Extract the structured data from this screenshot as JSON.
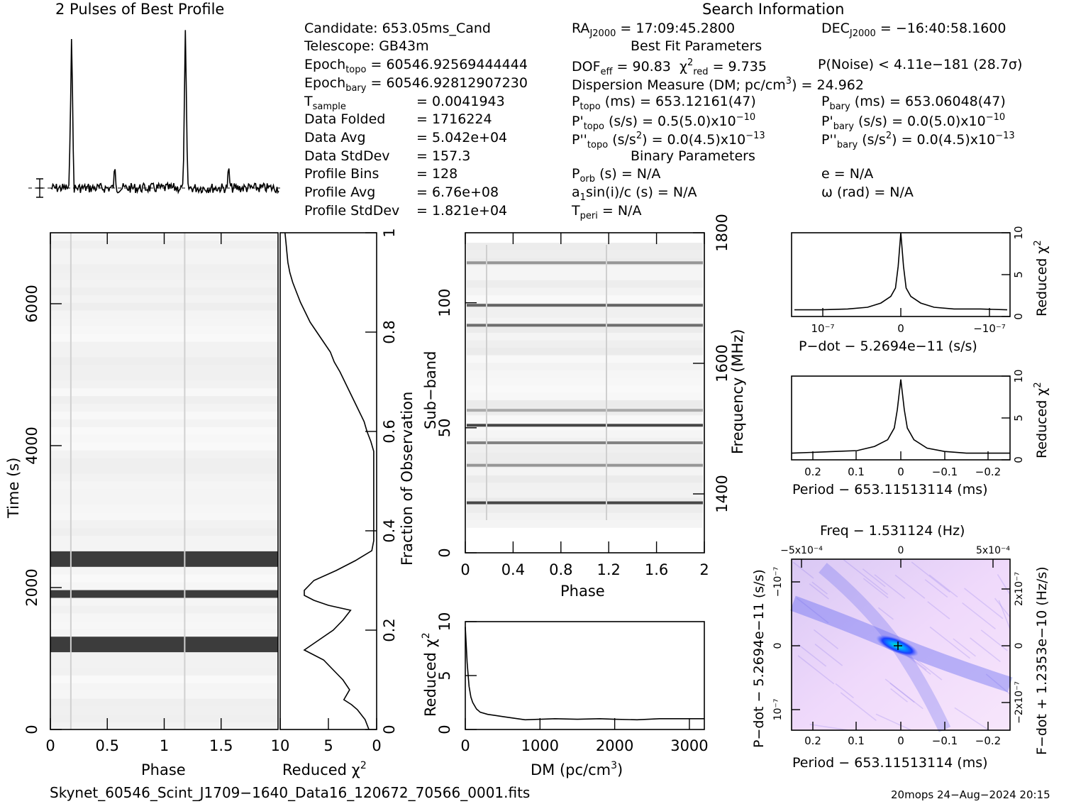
{
  "titles": {
    "profile": "2 Pulses of Best Profile",
    "search": "Search Information",
    "best_fit": "Best Fit Parameters",
    "binary": "Binary Parameters",
    "filename": "Skynet_60546_Scint_J1709−1640_Data16_120672_70566_0001.fits",
    "footer": "20mops 24−Aug−2024 20:15"
  },
  "info_left": {
    "candidate": "Candidate:  653.05ms_Cand",
    "telescope": "Telescope:  GB43m",
    "epoch_topo": "= 60546.92569444444",
    "epoch_bary": "= 60546.92812907230",
    "t_sample": "=   0.0041943",
    "data_folded_label": "Data Folded",
    "data_folded": "=   1716224",
    "data_avg_label": "Data Avg",
    "data_avg": "=   5.042e+04",
    "data_std_label": "Data StdDev",
    "data_std": "=   157.3",
    "profile_bins_label": "Profile Bins",
    "profile_bins": "=   128",
    "profile_avg_label": "Profile Avg",
    "profile_avg": "=   6.76e+08",
    "profile_std_label": "Profile StdDev",
    "profile_std": "=   1.821e+04"
  },
  "info_right": {
    "ra": "= 17:09:45.2800",
    "dec": "= −16:40:58.1600",
    "dof": "= 90.83",
    "chi2": "= 9.735",
    "pnoise": "P(Noise) < 4.11e−181  (28.7σ)",
    "dm": "Dispersion Measure (DM; pc/cm",
    "dm_val": ") = 24.962",
    "ptopo": "(ms) =  653.12161(47)",
    "pbary": "(ms) =  653.06048(47)",
    "pdtopo": "(s/s) =  0.5(5.0)x10",
    "pdtopo_exp": "−10",
    "pdbary": "(s/s) = 0.0(5.0)x10",
    "pdbary_exp": "−10",
    "pddtopo": "(s/s",
    "pddtopo_val": ") = 0.0(4.5)x10",
    "pddtopo_exp": "−13",
    "pddbary": "(s/s",
    "pddbary_val": ") = 0.0(4.5)x10",
    "pddbary_exp": "−13",
    "porb": "(s) = N/A",
    "ecc": "e = N/A",
    "a1": "a",
    "a1_rest": "sin(i)/c (s) = N/A",
    "omega": "ω (rad) = N/A",
    "tperi": "= N/A"
  },
  "axes": {
    "phase": "Phase",
    "time": "Time (s)",
    "reduced_chi2": "Reduced χ",
    "fraction": "Fraction of Observation",
    "subband": "Sub−band",
    "frequency": "Frequency (MHz)",
    "dm": "DM (pc/cm",
    "dm_close": ")",
    "pdot": "P−dot − 5.2694e−11 (s/s)",
    "period": "Period − 653.11513114 (ms)",
    "freq": "Freq − 1.531124 (Hz)",
    "fdot": "F−dot + 1.2353e−10 (Hz/s)"
  },
  "chart_data": [
    {
      "type": "line",
      "title": "2 Pulses of Best Profile",
      "x_range": [
        0,
        2
      ],
      "peaks_phase": [
        0.18,
        1.18
      ],
      "secondary_peaks_phase": [
        0.56,
        1.56
      ]
    },
    {
      "type": "heatmap",
      "name": "time-phase",
      "xlabel": "Phase",
      "ylabel": "Time (s)",
      "xlim": [
        0,
        2
      ],
      "ylim": [
        0,
        7000
      ],
      "xticks": [
        "0",
        "0.5",
        "1",
        "1.5"
      ],
      "yticks": [
        "0",
        "2000",
        "4000",
        "6000"
      ],
      "bright_rows_time": [
        1150,
        1880,
        2350
      ]
    },
    {
      "type": "line",
      "name": "chi2-vs-time",
      "xlabel": "Reduced χ²",
      "ylabel": "Fraction of Observation",
      "xlim": [
        10,
        0
      ],
      "ylim": [
        0,
        1
      ],
      "xticks": [
        "10",
        "5",
        "0"
      ],
      "yticks": [
        "0",
        "0.2",
        "0.4",
        "0.6",
        "0.8",
        "1"
      ],
      "x": [
        0.8,
        1.2,
        2.0,
        2.6,
        3.4,
        2.8,
        3.5,
        4.5,
        5.5,
        7.5,
        6.0,
        4.5,
        3.5,
        2.7,
        5.0,
        6.5,
        7.5,
        7.5,
        6.5,
        4.2,
        2.2,
        0.5,
        0.3,
        0.3,
        0.3,
        0.3,
        0.3,
        0.3,
        0.3,
        0.3,
        0.3,
        0.3,
        0.6,
        1.0,
        1.3,
        1.8,
        2.3,
        2.8,
        3.3,
        3.8,
        4.4,
        4.8,
        5.5,
        6.2,
        6.9,
        7.4,
        7.9,
        8.3,
        8.7,
        9.0,
        9.2,
        9.3,
        9.4,
        9.5
      ],
      "y": [
        0,
        0.02,
        0.04,
        0.05,
        0.06,
        0.08,
        0.1,
        0.12,
        0.14,
        0.16,
        0.18,
        0.2,
        0.22,
        0.24,
        0.25,
        0.26,
        0.27,
        0.28,
        0.3,
        0.32,
        0.34,
        0.36,
        0.38,
        0.4,
        0.42,
        0.44,
        0.46,
        0.48,
        0.5,
        0.52,
        0.54,
        0.56,
        0.58,
        0.6,
        0.62,
        0.64,
        0.66,
        0.68,
        0.7,
        0.72,
        0.74,
        0.76,
        0.78,
        0.8,
        0.82,
        0.84,
        0.86,
        0.88,
        0.9,
        0.92,
        0.94,
        0.96,
        0.98,
        1.0
      ]
    },
    {
      "type": "heatmap",
      "name": "subband-phase",
      "xlabel": "Phase",
      "ylabel": "Sub−band",
      "xlim": [
        0,
        2
      ],
      "ylim": [
        0,
        128
      ],
      "xticks": [
        "0",
        "0.4",
        "0.8",
        "1.2",
        "1.6",
        "2"
      ],
      "yticks": [
        "0",
        "50",
        "100"
      ],
      "right_axis": {
        "label": "Frequency (MHz)",
        "ticks": [
          "1400",
          "1600",
          "1800"
        ]
      },
      "bright_subbands": [
        20,
        35,
        44,
        51,
        57,
        91,
        99,
        116
      ]
    },
    {
      "type": "line",
      "name": "chi2-vs-dm",
      "xlabel": "DM (pc/cm³)",
      "ylabel": "Reduced χ²",
      "xlim": [
        0,
        3200
      ],
      "ylim": [
        0,
        10
      ],
      "xticks": [
        "0",
        "1000",
        "2000",
        "3000"
      ],
      "yticks": [
        "0",
        "5",
        "10"
      ],
      "x": [
        0,
        25,
        50,
        75,
        100,
        150,
        200,
        300,
        400,
        500,
        600,
        700,
        800,
        1000,
        1200,
        1500,
        1800,
        2000,
        2300,
        2600,
        2900,
        3200
      ],
      "y": [
        9.5,
        6.2,
        4.0,
        3.0,
        2.5,
        1.9,
        1.6,
        1.4,
        1.3,
        1.2,
        1.1,
        1.0,
        0.9,
        0.95,
        1.0,
        0.95,
        1.0,
        0.95,
        0.9,
        1.0,
        1.0,
        1.0
      ]
    },
    {
      "type": "line",
      "name": "chi2-vs-pdot",
      "xlabel": "P−dot − 5.2694e−11 (s/s)",
      "ylabel": "Reduced χ²",
      "xticks": [
        "10⁻⁷",
        "0",
        "−10⁻⁷"
      ],
      "yticks": [
        "0",
        "5",
        "10"
      ],
      "ylim": [
        0,
        10
      ],
      "x": [
        -1.6,
        -1.2,
        -0.8,
        -0.5,
        -0.3,
        -0.15,
        -0.08,
        -0.04,
        0,
        0.04,
        0.08,
        0.15,
        0.3,
        0.5,
        0.8,
        1.2,
        1.6
      ],
      "y": [
        0.8,
        0.9,
        0.9,
        1.1,
        1.6,
        2.4,
        3.4,
        6.0,
        10.0,
        6.0,
        3.4,
        2.4,
        1.6,
        1.1,
        0.9,
        0.8,
        0.8
      ]
    },
    {
      "type": "line",
      "name": "chi2-vs-period",
      "xlabel": "Period − 653.11513114 (ms)",
      "ylabel": "Reduced χ²",
      "xticks": [
        "0.2",
        "0.1",
        "0",
        "−0.1",
        "−0.2"
      ],
      "yticks": [
        "0",
        "5",
        "10"
      ],
      "xlim": [
        0.25,
        -0.25
      ],
      "ylim": [
        0,
        10
      ],
      "x": [
        0.25,
        0.2,
        0.15,
        0.1,
        0.06,
        0.03,
        0.015,
        0.008,
        0,
        -0.008,
        -0.015,
        -0.03,
        -0.06,
        -0.1,
        -0.15,
        -0.2,
        -0.25
      ],
      "y": [
        0.8,
        0.9,
        1.0,
        1.1,
        1.6,
        2.4,
        3.8,
        6.0,
        9.6,
        6.0,
        3.8,
        2.4,
        1.4,
        1.0,
        0.8,
        0.8,
        0.8
      ]
    },
    {
      "type": "heatmap",
      "name": "period-pdot",
      "xlabel": "Period − 653.11513114 (ms)",
      "ylabel": "P−dot − 5.2694e−11 (s/s)",
      "top_label": "Freq − 1.531124 (Hz)",
      "right_label": "F−dot + 1.2353e−10 (Hz/s)",
      "xticks": [
        "0.2",
        "0.1",
        "0",
        "−0.1",
        "−0.2"
      ],
      "top_ticks": [
        "−5x10⁻⁴",
        "0",
        "5x10⁻⁴"
      ],
      "left_ticks": [
        "−10⁻⁷",
        "0",
        "10⁻⁷"
      ],
      "right_ticks": [
        "2x10⁻⁷",
        "0",
        "−2x10⁻⁷"
      ]
    }
  ]
}
